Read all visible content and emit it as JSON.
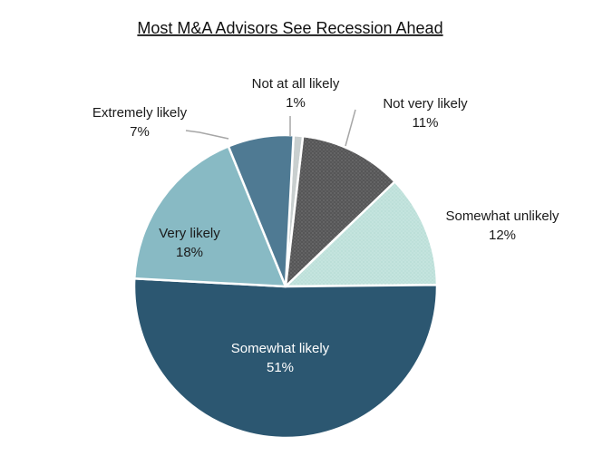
{
  "chart_data": {
    "type": "pie",
    "title": "Most M&A Advisors See Recession Ahead",
    "slices": [
      {
        "label": "Not at all likely",
        "value": 1,
        "value_label": "1%",
        "color": "#c9cfcf",
        "pattern": "none",
        "label_color": "#1a1a1a"
      },
      {
        "label": "Not very likely",
        "value": 11,
        "value_label": "11%",
        "color": "#565657",
        "pattern": "dots",
        "label_color": "#1a1a1a"
      },
      {
        "label": "Somewhat unlikely",
        "value": 12,
        "value_label": "12%",
        "color": "#c0e2dc",
        "pattern": "fine-dots",
        "label_color": "#1a1a1a"
      },
      {
        "label": "Somewhat likely",
        "value": 51,
        "value_label": "51%",
        "color": "#2c5771",
        "pattern": "none",
        "label_color": "#ffffff"
      },
      {
        "label": "Very likely",
        "value": 18,
        "value_label": "18%",
        "color": "#88bac4",
        "pattern": "none",
        "label_color": "#1a1a1a"
      },
      {
        "label": "Extremely likely",
        "value": 7,
        "value_label": "7%",
        "color": "#4f7a93",
        "pattern": "none",
        "label_color": "#1a1a1a"
      }
    ],
    "legend": "none",
    "label_style": "category and percentage on separate lines"
  }
}
